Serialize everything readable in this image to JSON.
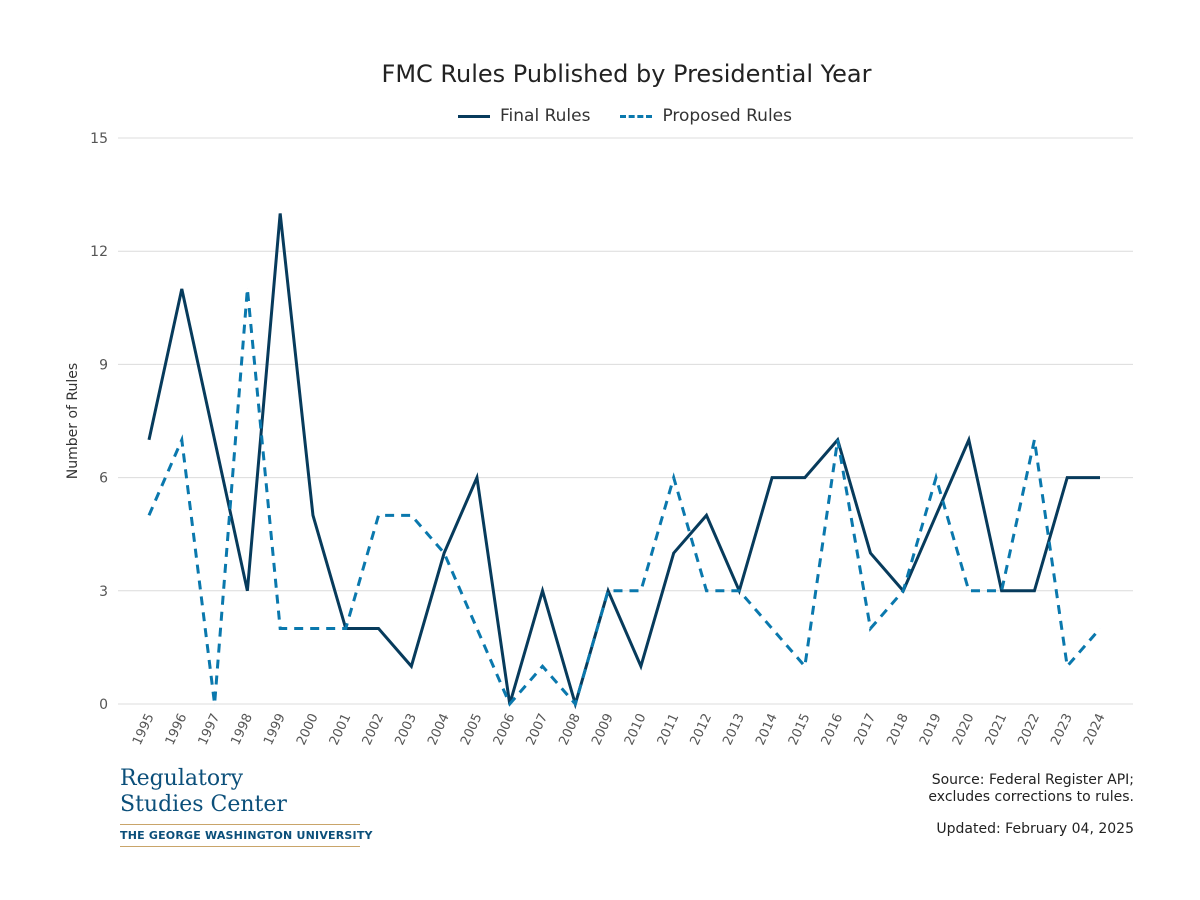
{
  "chart_data": {
    "type": "line",
    "title": "FMC Rules Published by Presidential Year",
    "ylabel": "Number of Rules",
    "xlabel": "",
    "ylim": [
      0,
      15
    ],
    "yticks": [
      0,
      3,
      6,
      9,
      12,
      15
    ],
    "grid": true,
    "legend_placement": "top",
    "categories": [
      "1995",
      "1996",
      "1997",
      "1998",
      "1999",
      "2000",
      "2001",
      "2002",
      "2003",
      "2004",
      "2005",
      "2006",
      "2007",
      "2008",
      "2009",
      "2010",
      "2011",
      "2012",
      "2013",
      "2014",
      "2015",
      "2016",
      "2017",
      "2018",
      "2019",
      "2020",
      "2021",
      "2022",
      "2023",
      "2024"
    ],
    "series": [
      {
        "name": "Final Rules",
        "color": "#073b5c",
        "style": "solid",
        "values": [
          7,
          11,
          7,
          3,
          13,
          5,
          2,
          2,
          1,
          4,
          6,
          0,
          3,
          0,
          3,
          1,
          4,
          5,
          3,
          6,
          6,
          7,
          4,
          3,
          5,
          7,
          3,
          3,
          6,
          6
        ]
      },
      {
        "name": "Proposed Rules",
        "color": "#0a78ad",
        "style": "dashed",
        "values": [
          5,
          7,
          0,
          11,
          2,
          2,
          2,
          5,
          5,
          4,
          2,
          0,
          1,
          0,
          3,
          3,
          6,
          3,
          3,
          2,
          1,
          7,
          2,
          3,
          6,
          3,
          3,
          7,
          1,
          2
        ]
      }
    ]
  },
  "footer": {
    "logo_line1": "Regulatory",
    "logo_line2": "Studies Center",
    "logo_line3": "THE GEORGE WASHINGTON UNIVERSITY",
    "source_line1": "Source: Federal Register API;",
    "source_line2": "excludes corrections to rules.",
    "updated": "Updated: February 04, 2025"
  }
}
